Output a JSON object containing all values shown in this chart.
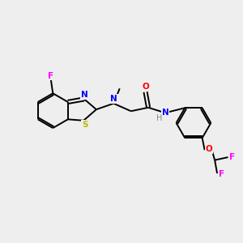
{
  "background_color": "#eeeeee",
  "bond_color": "#000000",
  "atom_colors": {
    "F": "#ff00ff",
    "S": "#bbbb00",
    "N": "#0000ff",
    "O": "#ff0000",
    "H": "#888888",
    "C": "#000000"
  },
  "figsize": [
    3.0,
    3.0
  ],
  "dpi": 100
}
